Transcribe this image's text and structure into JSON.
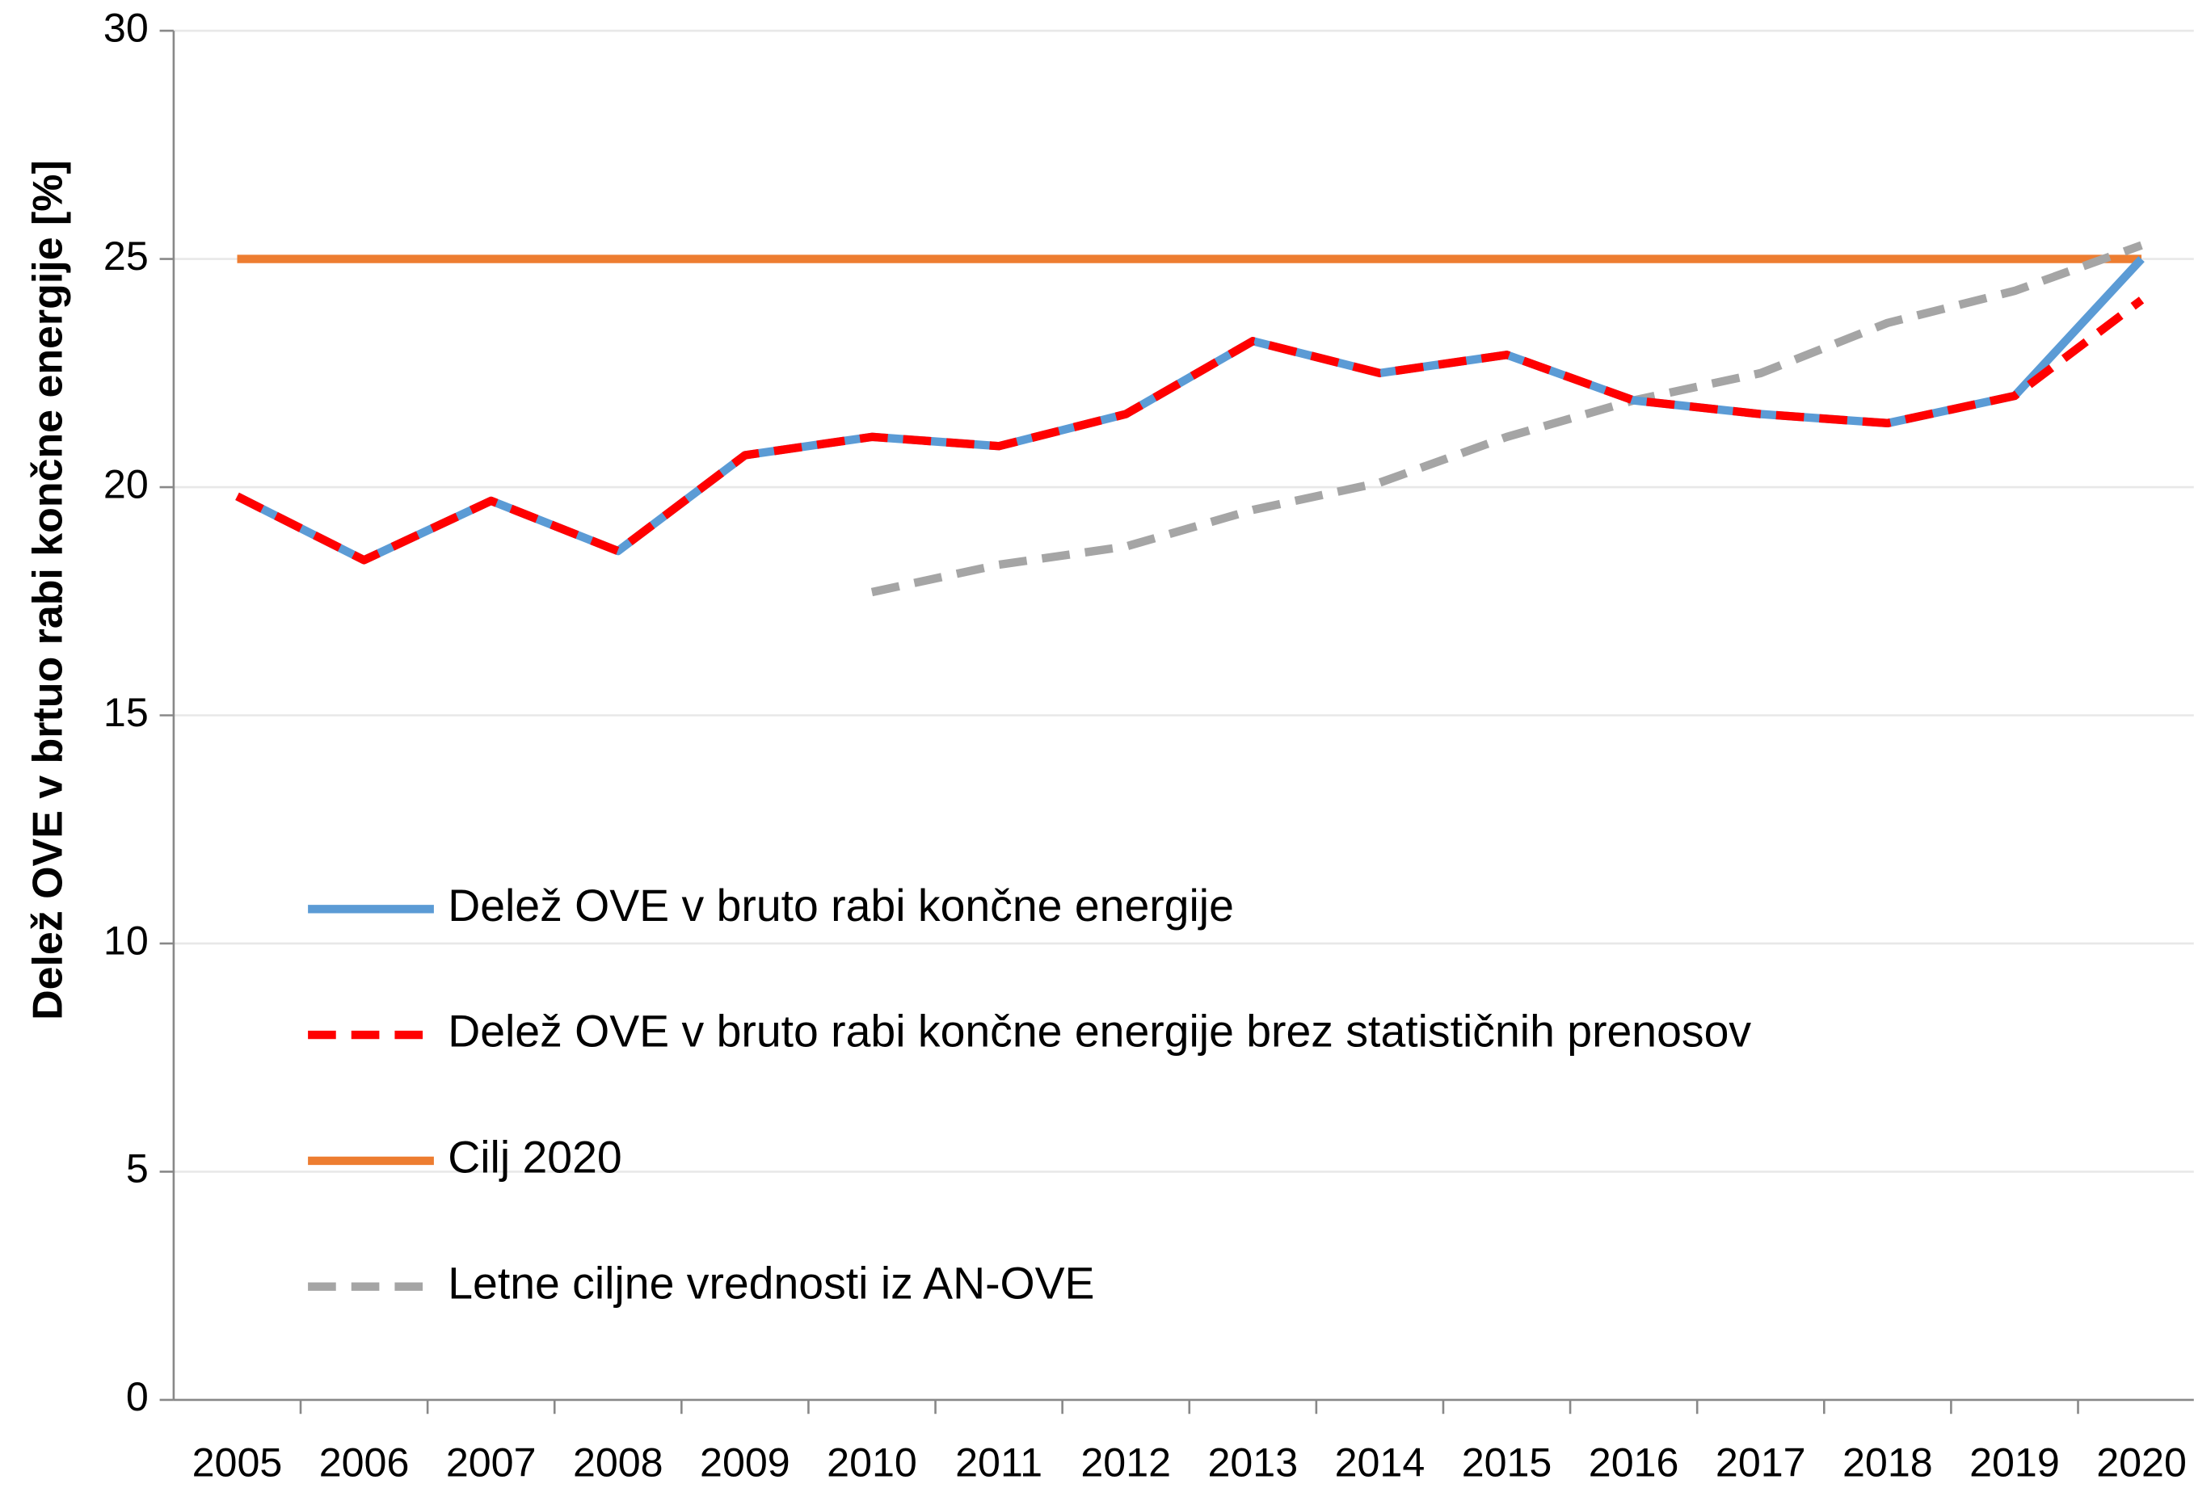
{
  "chart_data": {
    "type": "line",
    "y_label": "Delež OVE v brtuo rabi končne energije [%]",
    "categories": [
      "2005",
      "2006",
      "2007",
      "2008",
      "2009",
      "2010",
      "2011",
      "2012",
      "2013",
      "2014",
      "2015",
      "2016",
      "2017",
      "2018",
      "2019",
      "2020"
    ],
    "series": [
      {
        "name": "Delež OVE v bruto rabi končne energije",
        "color": "#5b9bd5",
        "dash": false,
        "values": [
          19.8,
          18.4,
          19.7,
          18.6,
          20.7,
          21.1,
          20.9,
          21.6,
          23.2,
          22.5,
          22.9,
          21.9,
          21.6,
          21.4,
          22.0,
          25.0
        ]
      },
      {
        "name": "Delež OVE v bruto rabi končne energije brez statističnih prenosov",
        "color": "#ff0000",
        "dash": true,
        "values": [
          19.8,
          18.4,
          19.7,
          18.6,
          20.7,
          21.1,
          20.9,
          21.6,
          23.2,
          22.5,
          22.9,
          21.9,
          21.6,
          21.4,
          22.0,
          24.1
        ]
      },
      {
        "name": "Cilj 2020",
        "color": "#ed7d31",
        "dash": false,
        "values": [
          25,
          25,
          25,
          25,
          25,
          25,
          25,
          25,
          25,
          25,
          25,
          25,
          25,
          25,
          25,
          25
        ]
      },
      {
        "name": "Letne ciljne vrednosti iz AN-OVE",
        "color": "#a5a5a5",
        "dash": true,
        "values": [
          null,
          null,
          null,
          null,
          null,
          17.7,
          18.3,
          18.7,
          19.5,
          20.1,
          21.1,
          21.9,
          22.5,
          23.6,
          24.3,
          25.3
        ]
      }
    ],
    "ylim": [
      0,
      30
    ],
    "yticks": [
      0,
      5,
      10,
      15,
      20,
      25,
      30
    ],
    "grid": true
  }
}
